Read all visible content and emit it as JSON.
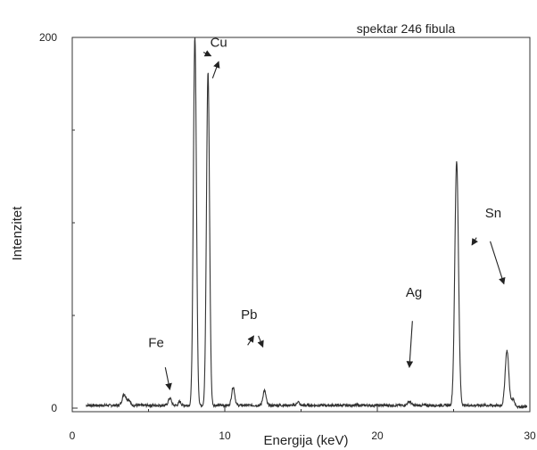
{
  "chart_data": {
    "type": "line",
    "title": "spektar 246 fibula",
    "xlabel": "Energija (keV)",
    "ylabel": "Intenzitet",
    "xlim": [
      0,
      30
    ],
    "ylim": [
      0,
      200
    ],
    "grid": false,
    "x_ticks": [
      {
        "value": 0,
        "label": "0"
      },
      {
        "value": 10,
        "label": "10"
      },
      {
        "value": 20,
        "label": "20"
      },
      {
        "value": 30,
        "label": "30"
      }
    ],
    "y_ticks": [
      {
        "value": 0,
        "label": "0"
      },
      {
        "value": 200,
        "label": "200"
      }
    ],
    "series": [
      {
        "peaks": [
          {
            "x": 3.4,
            "y": 6,
            "w": 0.12
          },
          {
            "x": 3.7,
            "y": 3,
            "w": 0.1
          },
          {
            "x": 6.4,
            "y": 4,
            "w": 0.1
          },
          {
            "x": 7.05,
            "y": 2,
            "w": 0.08
          },
          {
            "x": 8.04,
            "y": 200,
            "w": 0.1
          },
          {
            "x": 8.9,
            "y": 180,
            "w": 0.1
          },
          {
            "x": 10.55,
            "y": 10,
            "w": 0.1
          },
          {
            "x": 12.6,
            "y": 8,
            "w": 0.1
          },
          {
            "x": 14.8,
            "y": 2,
            "w": 0.08
          },
          {
            "x": 22.1,
            "y": 2,
            "w": 0.12
          },
          {
            "x": 25.2,
            "y": 132,
            "w": 0.12
          },
          {
            "x": 28.5,
            "y": 30,
            "w": 0.12
          },
          {
            "x": 28.9,
            "y": 4,
            "w": 0.1
          }
        ],
        "baseline": 1.5
      }
    ],
    "annotations": [
      {
        "text": "Cu",
        "label_x": 9.6,
        "label_y": 195,
        "arrows": [
          [
            8.6,
            192,
            9.1,
            190
          ],
          [
            9.2,
            178,
            9.6,
            187
          ]
        ]
      },
      {
        "text": "Fe",
        "label_x": 5.5,
        "label_y": 33,
        "arrows": [
          [
            6.1,
            22,
            6.4,
            10
          ]
        ]
      },
      {
        "text": "Pb",
        "label_x": 11.6,
        "label_y": 48,
        "arrows": [
          [
            11.5,
            34,
            11.9,
            39
          ],
          [
            12.2,
            39,
            12.5,
            33
          ]
        ]
      },
      {
        "text": "Ag",
        "label_x": 22.4,
        "label_y": 60,
        "arrows": [
          [
            22.3,
            47,
            22.1,
            22
          ]
        ]
      },
      {
        "text": "Sn",
        "label_x": 27.6,
        "label_y": 103,
        "arrows": [
          [
            26.5,
            92,
            26.2,
            88
          ],
          [
            27.4,
            90,
            28.3,
            67
          ]
        ]
      }
    ]
  }
}
